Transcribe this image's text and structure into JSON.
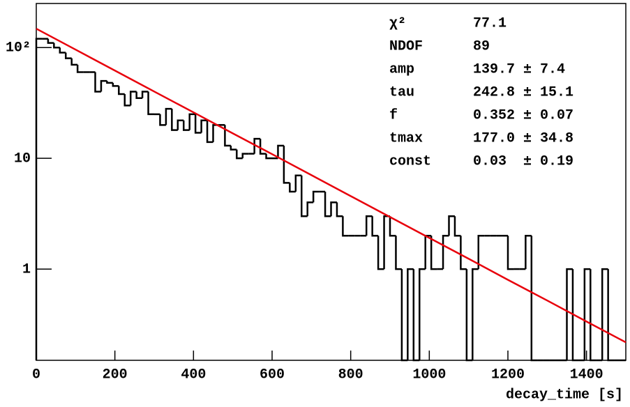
{
  "chart_data": {
    "type": "histogram",
    "log_y": true,
    "x_label": "decay_time [s]",
    "xlim": [
      0,
      1500
    ],
    "xticks": [
      0,
      200,
      400,
      600,
      800,
      1000,
      1200,
      1400
    ],
    "ylim": [
      0.15,
      250
    ],
    "yticks": [
      {
        "value": 1,
        "label": "1"
      },
      {
        "value": 10,
        "label": "10"
      },
      {
        "value": 100,
        "label": "10²"
      }
    ],
    "color": "#000000",
    "bins": [
      0,
      15,
      30,
      45,
      60,
      75,
      90,
      105,
      120,
      135,
      150,
      165,
      180,
      195,
      210,
      225,
      240,
      255,
      270,
      285,
      300,
      315,
      330,
      345,
      360,
      375,
      390,
      405,
      420,
      435,
      450,
      465,
      480,
      495,
      510,
      525,
      540,
      555,
      570,
      585,
      600,
      615,
      630,
      645,
      660,
      675,
      690,
      705,
      720,
      735,
      750,
      765,
      780,
      795,
      810,
      825,
      840,
      855,
      870,
      885,
      900,
      915,
      930,
      945,
      960,
      975,
      990,
      1005,
      1020,
      1035,
      1050,
      1065,
      1080,
      1095,
      1110,
      1125,
      1140,
      1155,
      1170,
      1185,
      1200,
      1215,
      1230,
      1245,
      1260,
      1275,
      1290,
      1305,
      1320,
      1335,
      1350,
      1365,
      1380,
      1395,
      1410,
      1425,
      1440,
      1455,
      1470,
      1485,
      1500
    ],
    "values": [
      120,
      120,
      110,
      100,
      90,
      80,
      70,
      60,
      60,
      60,
      40,
      50,
      48,
      45,
      38,
      30,
      40,
      35,
      40,
      25,
      25,
      20,
      28,
      18,
      22,
      18,
      25,
      17,
      22,
      14,
      20,
      20,
      13,
      12,
      10,
      11,
      11,
      15,
      11,
      10,
      10,
      13,
      6,
      5,
      7,
      3,
      4,
      5,
      5,
      3,
      4,
      3,
      2,
      2,
      2,
      2,
      3,
      2,
      1,
      3,
      2,
      1,
      0,
      1,
      0,
      1,
      2,
      1,
      1,
      2,
      3,
      2,
      1,
      0,
      1,
      2,
      2,
      2,
      2,
      2,
      1,
      1,
      1,
      2,
      0,
      0,
      0,
      0,
      0,
      0,
      1,
      0,
      0,
      1,
      0,
      0,
      1,
      0,
      0,
      0
    ],
    "fit": {
      "color": "#e8000b",
      "x": [
        0,
        100,
        200,
        300,
        400,
        500,
        600,
        700,
        800,
        900,
        1000,
        1100,
        1200,
        1300,
        1400,
        1500
      ],
      "values": [
        148,
        95.8,
        62.0,
        40.1,
        26.0,
        16.8,
        10.9,
        7.05,
        4.56,
        2.95,
        1.91,
        1.24,
        0.8,
        0.52,
        0.336,
        0.218
      ]
    },
    "stats": [
      {
        "label": "χ²",
        "value": "77.1"
      },
      {
        "label": "NDOF",
        "value": "89"
      },
      {
        "label": "amp",
        "value": "139.7 ± 7.4"
      },
      {
        "label": "tau",
        "value": "242.8 ± 15.1"
      },
      {
        "label": "f",
        "value": "0.352 ± 0.07"
      },
      {
        "label": "tmax",
        "value": "177.0 ± 34.8"
      },
      {
        "label": "const",
        "value": "0.03  ± 0.19"
      }
    ]
  }
}
